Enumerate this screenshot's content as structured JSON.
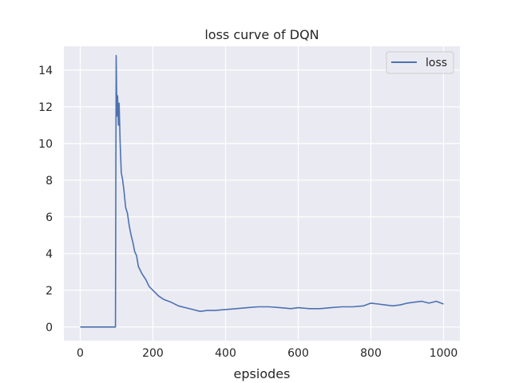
{
  "chart_data": {
    "type": "line",
    "title": "loss curve of DQN",
    "xlabel": "epsiodes",
    "ylabel": "",
    "xlim": [
      -45,
      1045
    ],
    "ylim": [
      -0.75,
      15.3
    ],
    "xticks": [
      0,
      200,
      400,
      600,
      800,
      1000
    ],
    "yticks": [
      0,
      2,
      4,
      6,
      8,
      10,
      12,
      14
    ],
    "grid": true,
    "legend": "top-right",
    "colors": {
      "background": "#eaeaf2",
      "grid": "#ffffff",
      "line": "#4c72b0",
      "text": "#262626"
    },
    "series": [
      {
        "name": "loss",
        "x": [
          0,
          95,
          97,
          99,
          101,
          103,
          105,
          107,
          110,
          113,
          116,
          120,
          125,
          130,
          135,
          140,
          145,
          150,
          155,
          160,
          170,
          180,
          190,
          200,
          215,
          230,
          250,
          270,
          290,
          310,
          330,
          350,
          370,
          400,
          430,
          460,
          490,
          520,
          550,
          580,
          600,
          630,
          660,
          690,
          720,
          750,
          780,
          800,
          820,
          840,
          860,
          880,
          900,
          920,
          940,
          960,
          980,
          1000
        ],
        "y": [
          0,
          0,
          0,
          14.8,
          11.5,
          12.6,
          11.0,
          12.2,
          10.0,
          8.4,
          8.1,
          7.5,
          6.5,
          6.2,
          5.5,
          5.0,
          4.6,
          4.1,
          3.9,
          3.3,
          2.9,
          2.6,
          2.2,
          2.0,
          1.7,
          1.5,
          1.35,
          1.15,
          1.05,
          0.95,
          0.85,
          0.9,
          0.9,
          0.95,
          1.0,
          1.05,
          1.1,
          1.1,
          1.05,
          1.0,
          1.05,
          1.0,
          1.0,
          1.05,
          1.1,
          1.1,
          1.15,
          1.3,
          1.25,
          1.2,
          1.15,
          1.2,
          1.3,
          1.35,
          1.4,
          1.3,
          1.4,
          1.25
        ]
      }
    ]
  }
}
